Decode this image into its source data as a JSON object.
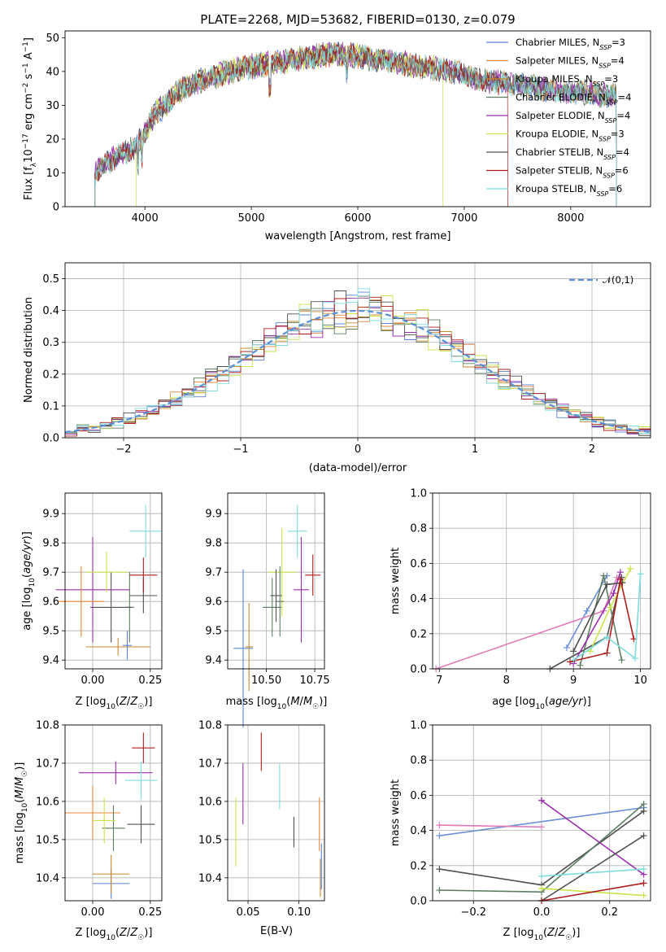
{
  "title": "PLATE=2268, MJD=53682, FIBERID=0130, z=0.079",
  "models": [
    {
      "name": "Chabrier MILES",
      "nssp": "3",
      "color": "#5b84d6"
    },
    {
      "name": "Salpeter MILES",
      "nssp": "4",
      "color": "#e8873a"
    },
    {
      "name": "Kroupa MILES",
      "nssp": "3",
      "color": "#c8882e"
    },
    {
      "name": "Chabrier ELODIE",
      "nssp": "4",
      "color": "#5d7d61"
    },
    {
      "name": "Salpeter ELODIE",
      "nssp": "4",
      "color": "#9b2fae"
    },
    {
      "name": "Kroupa ELODIE",
      "nssp": "3",
      "color": "#cbe24a"
    },
    {
      "name": "Chabrier STELIB",
      "nssp": "4",
      "color": "#505050"
    },
    {
      "name": "Salpeter STELIB",
      "nssp": "6",
      "color": "#b01c1c"
    },
    {
      "name": "Kroupa STELIB",
      "nssp": "6",
      "color": "#7fdcdc"
    }
  ],
  "chart_data": [
    {
      "id": "spectrum",
      "type": "line",
      "title": "PLATE=2268, MJD=53682, FIBERID=0130, z=0.079",
      "xlabel": "wavelength [Angstrom, rest frame]",
      "ylabel": "Flux [f_λ10^-17 erg cm^-2 s^-1 A^-1]",
      "xlim": [
        3250,
        8750
      ],
      "ylim": [
        0,
        52
      ],
      "xticks": [
        "4000",
        "5000",
        "6000",
        "7000",
        "8000"
      ],
      "yticks": [
        "0",
        "10",
        "20",
        "30",
        "40",
        "50"
      ],
      "grid": false,
      "legend": "upper right",
      "spectrum_envelope": {
        "x": [
          3530,
          3600,
          3700,
          3800,
          3900,
          4000,
          4100,
          4200,
          4300,
          4500,
          4700,
          4900,
          5100,
          5300,
          5500,
          5700,
          5900,
          6100,
          6300,
          6500,
          6700,
          6900,
          7100,
          7300,
          7500,
          7700,
          7900,
          8100,
          8300,
          8430
        ],
        "y": [
          10,
          12,
          14,
          16,
          17,
          22,
          28,
          30,
          34,
          37,
          39,
          41,
          42,
          43,
          44,
          45,
          45,
          44,
          43,
          42,
          41,
          40,
          38,
          37,
          36,
          35,
          34,
          34,
          33,
          33
        ]
      }
    },
    {
      "id": "residuals",
      "type": "histogram",
      "xlabel": "(data-model)/error",
      "ylabel": "Normed distribution",
      "xlim": [
        -2.5,
        2.5
      ],
      "ylim": [
        0,
        0.55
      ],
      "xticks": [
        "−2",
        "−1",
        "0",
        "1",
        "2"
      ],
      "yticks": [
        "0.0",
        "0.1",
        "0.2",
        "0.3",
        "0.4",
        "0.5"
      ],
      "grid": true,
      "legend": "upper right",
      "reference_label": "𝒩(0,1)",
      "bin_width": 0.1
    },
    {
      "id": "age-vs-Z",
      "type": "errorbar",
      "xlabel": "Z [log10(Z/Z☉)]",
      "ylabel": "age  [log10(age/yr)]",
      "xlim": [
        -0.12,
        0.3
      ],
      "ylim": [
        9.37,
        9.97
      ],
      "xticks": [
        "0.00",
        "0.25"
      ],
      "yticks": [
        "9.4",
        "9.5",
        "9.6",
        "9.7",
        "9.8",
        "9.9"
      ],
      "grid": true,
      "points": [
        {
          "x": 0.16,
          "y": 9.58,
          "xerr": 0.02,
          "yerr": 0.12
        },
        {
          "x": 0.11,
          "y": 9.445,
          "xerr": 0.14,
          "yerr": 0.03
        },
        {
          "x": 0.15,
          "y": 9.45,
          "xerr": 0.02,
          "yerr": 0.05
        },
        {
          "x": 0.08,
          "y": 9.58,
          "xerr": 0.09,
          "yerr": 0.12
        },
        {
          "x": 0.0,
          "y": 9.64,
          "xerr": 0.16,
          "yerr": 0.18
        },
        {
          "x": 0.06,
          "y": 9.7,
          "xerr": 0.09,
          "yerr": 0.07
        },
        {
          "x": 0.22,
          "y": 9.62,
          "xerr": 0.06,
          "yerr": 0.06
        },
        {
          "x": 0.22,
          "y": 9.69,
          "xerr": 0.06,
          "yerr": 0.06
        },
        {
          "x": 0.23,
          "y": 9.84,
          "xerr": 0.07,
          "yerr": 0.09
        },
        {
          "x": -0.05,
          "y": 9.6,
          "xerr": 0.1,
          "yerr": 0.12
        }
      ]
    },
    {
      "id": "age-vs-mass",
      "type": "errorbar",
      "xlabel": "mass [log10(M/M☉)]",
      "ylabel": "",
      "xlim": [
        10.3,
        10.8
      ],
      "ylim": [
        9.37,
        9.97
      ],
      "xticks": [
        "10.50",
        "10.75"
      ],
      "yticks": [
        "9.4",
        "9.5",
        "9.6",
        "9.7",
        "9.8",
        "9.9"
      ],
      "grid": true,
      "points": [
        {
          "x": 10.38,
          "y": 9.44,
          "xerr": 0.05,
          "yerr": 0.27
        },
        {
          "x": 10.41,
          "y": 9.445,
          "xerr": 0.02,
          "yerr": 0.15
        },
        {
          "x": 10.53,
          "y": 9.58,
          "xerr": 0.05,
          "yerr": 0.1
        },
        {
          "x": 10.68,
          "y": 9.64,
          "xerr": 0.04,
          "yerr": 0.18
        },
        {
          "x": 10.58,
          "y": 9.7,
          "xerr": 0.07,
          "yerr": 0.15
        },
        {
          "x": 10.55,
          "y": 9.62,
          "xerr": 0.03,
          "yerr": 0.09
        },
        {
          "x": 10.74,
          "y": 9.69,
          "xerr": 0.04,
          "yerr": 0.07
        },
        {
          "x": 10.66,
          "y": 9.84,
          "xerr": 0.05,
          "yerr": 0.09
        },
        {
          "x": 10.57,
          "y": 9.6,
          "xerr": 0.02,
          "yerr": 0.12
        }
      ]
    },
    {
      "id": "massweight-vs-age",
      "type": "line",
      "xlabel": "age  [log10(age/yr)]",
      "ylabel": "mass weight",
      "xlim": [
        6.9,
        10.15
      ],
      "ylim": [
        0,
        1
      ],
      "xticks": [
        "7",
        "8",
        "9",
        "10"
      ],
      "yticks": [
        "0.0",
        "0.2",
        "0.4",
        "0.6",
        "0.8",
        "1.0"
      ],
      "grid": true,
      "series": [
        {
          "x": [
            8.9,
            9.2,
            9.5
          ],
          "y": [
            0.12,
            0.33,
            0.53
          ]
        },
        {
          "x": [
            6.95,
            9.45,
            9.65
          ],
          "y": [
            0.0,
            0.33,
            0.52
          ]
        },
        {
          "x": [
            8.65,
            9.5,
            9.72
          ],
          "y": [
            0.0,
            0.18,
            0.52
          ]
        },
        {
          "x": [
            9.1,
            9.45,
            9.72
          ],
          "y": [
            0.02,
            0.53,
            0.05
          ]
        },
        {
          "x": [
            9.0,
            9.6,
            9.7
          ],
          "y": [
            0.03,
            0.43,
            0.55
          ]
        },
        {
          "x": [
            9.25,
            9.55,
            9.85
          ],
          "y": [
            0.1,
            0.35,
            0.57
          ]
        },
        {
          "x": [
            9.0,
            9.5,
            9.73
          ],
          "y": [
            0.1,
            0.48,
            0.49
          ]
        },
        {
          "x": [
            8.95,
            9.5,
            9.7,
            9.9
          ],
          "y": [
            0.04,
            0.09,
            0.51,
            0.17
          ]
        },
        {
          "x": [
            9.0,
            9.5,
            9.92,
            10.0
          ],
          "y": [
            0.05,
            0.18,
            0.06,
            0.54
          ]
        }
      ]
    },
    {
      "id": "mass-vs-Z",
      "type": "errorbar",
      "xlabel": "Z [log10(Z/Z☉)]",
      "ylabel": "mass [log10(M/M☉)]",
      "xlim": [
        -0.12,
        0.3
      ],
      "ylim": [
        10.34,
        10.8
      ],
      "xticks": [
        "0.00",
        "0.25"
      ],
      "yticks": [
        "10.4",
        "10.5",
        "10.6",
        "10.7",
        "10.8"
      ],
      "grid": true,
      "points": [
        {
          "x": 0.08,
          "y": 10.385,
          "xerr": 0.08,
          "yerr": 0.04
        },
        {
          "x": 0.08,
          "y": 10.41,
          "xerr": 0.08,
          "yerr": 0.05
        },
        {
          "x": 0.0,
          "y": 10.57,
          "xerr": 0.12,
          "yerr": 0.07
        },
        {
          "x": 0.09,
          "y": 10.53,
          "xerr": 0.05,
          "yerr": 0.06
        },
        {
          "x": 0.1,
          "y": 10.675,
          "xerr": 0.16,
          "yerr": 0.03
        },
        {
          "x": 0.05,
          "y": 10.55,
          "xerr": 0.05,
          "yerr": 0.06
        },
        {
          "x": 0.21,
          "y": 10.54,
          "xerr": 0.06,
          "yerr": 0.05
        },
        {
          "x": 0.22,
          "y": 10.74,
          "xerr": 0.05,
          "yerr": 0.04
        },
        {
          "x": 0.21,
          "y": 10.655,
          "xerr": 0.07,
          "yerr": 0.05
        }
      ]
    },
    {
      "id": "mass-vs-ebv",
      "type": "errorbar",
      "xlabel": "E(B-V)",
      "ylabel": "",
      "xlim": [
        0.03,
        0.125
      ],
      "ylim": [
        10.34,
        10.8
      ],
      "xticks": [
        "0.05",
        "0.10"
      ],
      "yticks": [
        "10.4",
        "10.5",
        "10.6",
        "10.7",
        "10.8"
      ],
      "grid": true,
      "points": [
        {
          "x": 0.038,
          "y": 10.52,
          "xerr": 0,
          "yerr": 0.09
        },
        {
          "x": 0.045,
          "y": 10.62,
          "xerr": 0,
          "yerr": 0.08
        },
        {
          "x": 0.063,
          "y": 10.73,
          "xerr": 0,
          "yerr": 0.05
        },
        {
          "x": 0.081,
          "y": 10.64,
          "xerr": 0,
          "yerr": 0.06
        },
        {
          "x": 0.095,
          "y": 10.52,
          "xerr": 0,
          "yerr": 0.04
        },
        {
          "x": 0.12,
          "y": 10.54,
          "xerr": 0,
          "yerr": 0.07
        },
        {
          "x": 0.121,
          "y": 10.4,
          "xerr": 0,
          "yerr": 0.05
        },
        {
          "x": 0.122,
          "y": 10.43,
          "xerr": 0,
          "yerr": 0.06
        }
      ]
    },
    {
      "id": "massweight-vs-Z",
      "type": "line",
      "xlabel": "Z [log10(Z/Z☉)]",
      "ylabel": "mass weight",
      "xlim": [
        -0.32,
        0.32
      ],
      "ylim": [
        0,
        1
      ],
      "xticks": [
        "−0.2",
        "0.0",
        "0.2"
      ],
      "yticks": [
        "0.0",
        "0.2",
        "0.4",
        "0.6",
        "0.8",
        "1.0"
      ],
      "grid": true,
      "series": [
        {
          "x": [
            -0.3,
            0.3
          ],
          "y": [
            0.37,
            0.53
          ]
        },
        {
          "x": [
            -0.3,
            0.0
          ],
          "y": [
            0.43,
            0.42
          ]
        },
        {
          "x": [
            -0.3,
            0.0,
            0.3
          ],
          "y": [
            0.18,
            0.09,
            0.51
          ]
        },
        {
          "x": [
            -0.3,
            0.0,
            0.3
          ],
          "y": [
            0.06,
            0.05,
            0.55
          ]
        },
        {
          "x": [
            0.0,
            0.0,
            0.3
          ],
          "y": [
            0.57,
            0.57,
            0.15
          ]
        },
        {
          "x": [
            0.0,
            0.3
          ],
          "y": [
            0.07,
            0.03
          ]
        },
        {
          "x": [
            0.0,
            0.3
          ],
          "y": [
            0.0,
            0.37
          ]
        },
        {
          "x": [
            0.0,
            0.3
          ],
          "y": [
            0.0,
            0.1
          ]
        },
        {
          "x": [
            0.0,
            0.3
          ],
          "y": [
            0.14,
            0.18
          ]
        }
      ]
    }
  ]
}
